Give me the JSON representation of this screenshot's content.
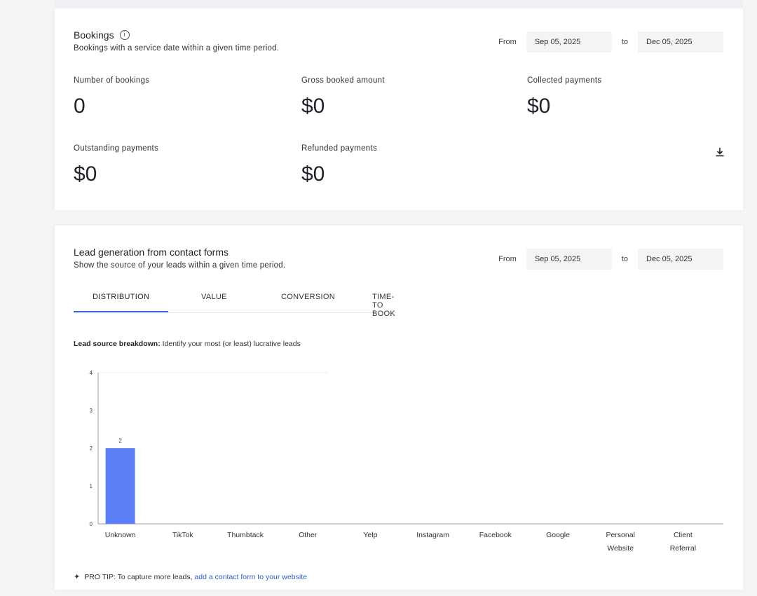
{
  "bookings": {
    "title": "Bookings",
    "subtitle": "Bookings with a service date within a given time period.",
    "date_range": {
      "from_label": "From",
      "from_value": "Sep 05, 2025",
      "to_label": "to",
      "to_value": "Dec 05, 2025"
    },
    "metrics": [
      {
        "label": "Number of bookings",
        "value": "0"
      },
      {
        "label": "Gross booked amount",
        "value": "$0"
      },
      {
        "label": "Collected payments",
        "value": "$0"
      },
      {
        "label": "Outstanding payments",
        "value": "$0"
      },
      {
        "label": "Refunded payments",
        "value": "$0"
      }
    ],
    "download_icon": "download-icon"
  },
  "leads": {
    "title": "Lead generation from contact forms",
    "subtitle": "Show the source of your leads within a given time period.",
    "date_range": {
      "from_label": "From",
      "from_value": "Sep 05, 2025",
      "to_label": "to",
      "to_value": "Dec 05, 2025"
    },
    "tabs": [
      "DISTRIBUTION",
      "VALUE",
      "CONVERSION",
      "TIME-TO BOOK"
    ],
    "active_tab": "DISTRIBUTION",
    "breakdown_bold": "Lead source breakdown:",
    "breakdown_text": " Identify your most (or least) lucrative leads",
    "pro_tip_label": "PRO TIP:",
    "pro_tip_text": " To capture more leads, ",
    "pro_tip_link": "add a contact form to your website"
  },
  "colors": {
    "bar": "#5b7ff5",
    "accent": "#3b6bd6",
    "link": "#2f5fc4"
  },
  "chart_data": {
    "type": "bar",
    "categories": [
      "Unknown",
      "TikTok",
      "Thumbtack",
      "Other",
      "Yelp",
      "Instagram",
      "Facebook",
      "Google",
      "Personal Website",
      "Client Referral"
    ],
    "category_lines": [
      [
        "Unknown"
      ],
      [
        "TikTok"
      ],
      [
        "Thumbtack"
      ],
      [
        "Other"
      ],
      [
        "Yelp"
      ],
      [
        "Instagram"
      ],
      [
        "Facebook"
      ],
      [
        "Google"
      ],
      [
        "Personal",
        "Website"
      ],
      [
        "Client",
        "Referral"
      ]
    ],
    "values": [
      2,
      0,
      0,
      0,
      0,
      0,
      0,
      0,
      0,
      0
    ],
    "data_labels": [
      "2",
      "",
      "",
      "",
      "",
      "",
      "",
      "",
      "",
      ""
    ],
    "yticks": [
      0,
      1,
      2,
      3,
      4
    ],
    "ylim": [
      0,
      4
    ],
    "title": "",
    "xlabel": "",
    "ylabel": ""
  }
}
